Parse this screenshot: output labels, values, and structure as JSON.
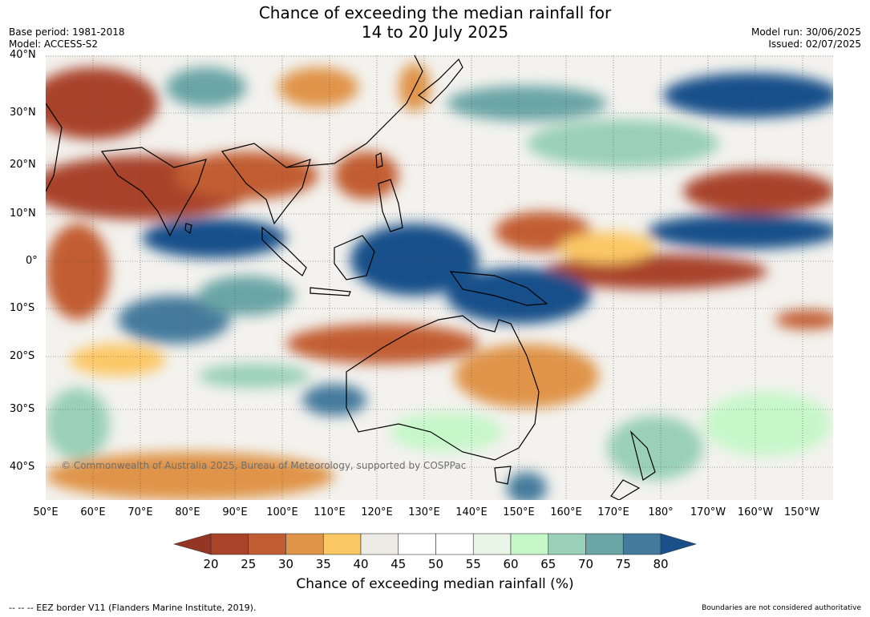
{
  "header": {
    "title_line1": "Chance of exceeding the median rainfall for",
    "title_line2": "14 to 20 July 2025",
    "base_period": "Base period: 1981-2018",
    "model": "Model: ACCESS-S2",
    "model_run": "Model run: 30/06/2025",
    "issued": "Issued: 02/07/2025"
  },
  "map": {
    "lat_labels": [
      "40°N",
      "30°N",
      "20°N",
      "10°N",
      "0°",
      "10°S",
      "20°S",
      "30°S",
      "40°S"
    ],
    "lon_labels": [
      "50°E",
      "60°E",
      "70°E",
      "80°E",
      "90°E",
      "100°E",
      "110°E",
      "120°E",
      "130°E",
      "140°E",
      "150°E",
      "160°E",
      "170°E",
      "180°",
      "170°W",
      "160°W",
      "150°W"
    ],
    "copyright": "© Commonwealth of Australia 2025, Bureau of Meteorology, supported by COSPPac"
  },
  "colorbar": {
    "title": "Chance of exceeding median rainfall (%)",
    "ticks": [
      "20",
      "25",
      "30",
      "35",
      "40",
      "45",
      "50",
      "55",
      "60",
      "65",
      "70",
      "75",
      "80"
    ],
    "colors": [
      "#a9432a",
      "#c25d33",
      "#e0944a",
      "#fcc866",
      "#ecebe6",
      "#ffffff",
      "#ffffff",
      "#e9f5e6",
      "#c6f7c9",
      "#9ad0b7",
      "#6ba5a6",
      "#447a9c"
    ],
    "low_color": "#953523",
    "high_color": "#19508a"
  },
  "footer": {
    "eez_note": "--  --  -- EEZ border V11 (Flanders Marine Institute, 2019).",
    "disclaimer": "Boundaries are not considered authoritative"
  }
}
